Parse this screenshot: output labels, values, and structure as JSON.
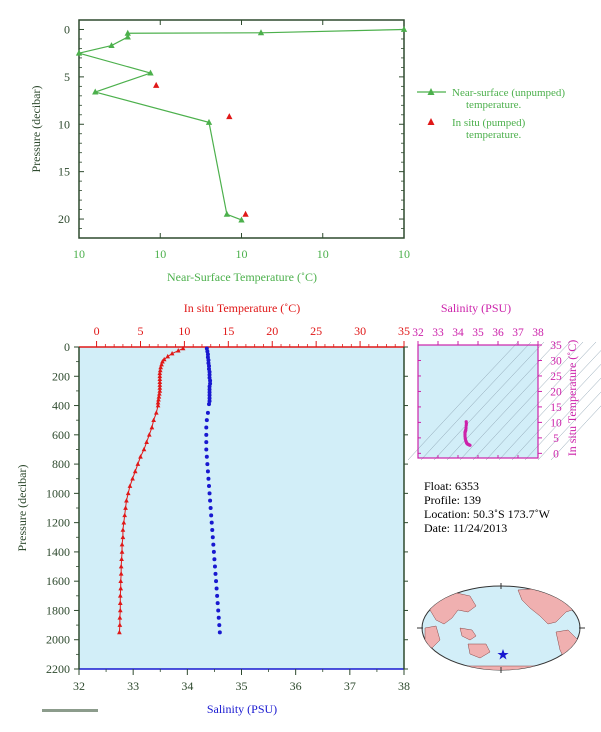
{
  "colors": {
    "axis": "#2e4a2e",
    "green": "#4cb04c",
    "red": "#e01818",
    "blue": "#1818d0",
    "magenta": "#cc22aa",
    "panel_bg": "#d2eef8",
    "land": "#f0b0b0",
    "ocean": "#d2eef8"
  },
  "chart_data": [
    {
      "type": "line",
      "id": "near-surface",
      "xlabel": "Near-Surface Temperature (˚C)",
      "ylabel": "Pressure (decibar)",
      "xlim": [
        9.9,
        10.1
      ],
      "ylim": [
        22,
        -1
      ],
      "x_ticks": [
        9.9,
        9.95,
        10.0,
        10.05,
        10.1
      ],
      "x_tick_labels": [
        "10",
        "10",
        "10",
        "10",
        "10"
      ],
      "y_ticks": [
        0,
        5,
        10,
        15,
        20
      ],
      "y_tick_labels": [
        "0",
        "5",
        "10",
        "15",
        "20"
      ],
      "legend": {
        "placement": "right",
        "items": [
          {
            "label": "Near-surface (unpumped)",
            "label2": "temperature.",
            "marker": "triangle-line"
          },
          {
            "label": "In situ (pumped)",
            "label2": "temperature.",
            "marker": "triangle"
          }
        ]
      },
      "series": [
        {
          "name": "Near-surface (unpumped) temperature.",
          "marker": "triangle-line",
          "points": [
            [
              10.1,
              0.0
            ],
            [
              10.012,
              0.35
            ],
            [
              9.93,
              0.4
            ],
            [
              9.93,
              0.8
            ],
            [
              9.92,
              1.7
            ],
            [
              9.9,
              2.5
            ],
            [
              9.944,
              4.6
            ],
            [
              9.91,
              6.6
            ],
            [
              9.98,
              9.8
            ],
            [
              9.991,
              19.5
            ],
            [
              10.0,
              20.1
            ]
          ]
        },
        {
          "name": "In situ (pumped) temperature.",
          "marker": "triangle",
          "points": [
            [
              9.9475,
              5.9
            ],
            [
              9.9925,
              9.2
            ],
            [
              10.0025,
              19.5
            ]
          ]
        }
      ]
    },
    {
      "type": "scatter",
      "id": "profile",
      "ylabel": "Pressure (decibar)",
      "ylim": [
        2200,
        0
      ],
      "y_ticks": [
        0,
        200,
        400,
        600,
        800,
        1000,
        1200,
        1400,
        1600,
        1800,
        2000,
        2200
      ],
      "top_axis": {
        "label": "In situ Temperature (˚C)",
        "range": [
          -2,
          35
        ],
        "ticks": [
          0,
          5,
          10,
          15,
          20,
          25,
          30,
          35
        ]
      },
      "bottom_axis": {
        "label": "Salinity (PSU)",
        "range": [
          32,
          38
        ],
        "ticks": [
          32,
          33,
          34,
          35,
          36,
          37,
          38
        ]
      },
      "series": [
        {
          "name": "In situ Temperature (˚C)",
          "axis": "top",
          "marker": "triangle",
          "points": [
            [
              9.85,
              10
            ],
            [
              9.3,
              25
            ],
            [
              8.6,
              45
            ],
            [
              8.1,
              65
            ],
            [
              7.7,
              85
            ],
            [
              7.5,
              100
            ],
            [
              7.4,
              120
            ],
            [
              7.3,
              140
            ],
            [
              7.25,
              160
            ],
            [
              7.2,
              180
            ],
            [
              7.2,
              200
            ],
            [
              7.2,
              220
            ],
            [
              7.2,
              240
            ],
            [
              7.2,
              260
            ],
            [
              7.2,
              280
            ],
            [
              7.2,
              300
            ],
            [
              7.15,
              320
            ],
            [
              7.1,
              340
            ],
            [
              7.05,
              360
            ],
            [
              7.0,
              380
            ],
            [
              7.0,
              400
            ],
            [
              6.8,
              450
            ],
            [
              6.5,
              500
            ],
            [
              6.3,
              550
            ],
            [
              6.0,
              600
            ],
            [
              5.7,
              650
            ],
            [
              5.4,
              700
            ],
            [
              5.0,
              750
            ],
            [
              4.7,
              800
            ],
            [
              4.4,
              850
            ],
            [
              4.1,
              900
            ],
            [
              3.8,
              950
            ],
            [
              3.6,
              1000
            ],
            [
              3.4,
              1050
            ],
            [
              3.3,
              1100
            ],
            [
              3.2,
              1150
            ],
            [
              3.1,
              1200
            ],
            [
              3.0,
              1250
            ],
            [
              3.0,
              1300
            ],
            [
              2.9,
              1350
            ],
            [
              2.9,
              1400
            ],
            [
              2.85,
              1450
            ],
            [
              2.8,
              1500
            ],
            [
              2.8,
              1550
            ],
            [
              2.75,
              1600
            ],
            [
              2.75,
              1650
            ],
            [
              2.7,
              1700
            ],
            [
              2.7,
              1750
            ],
            [
              2.7,
              1800
            ],
            [
              2.65,
              1850
            ],
            [
              2.65,
              1900
            ],
            [
              2.6,
              1950
            ]
          ]
        },
        {
          "name": "Salinity (PSU)",
          "axis": "bottom",
          "marker": "dot",
          "points": [
            [
              34.36,
              10
            ],
            [
              34.37,
              30
            ],
            [
              34.38,
              50
            ],
            [
              34.38,
              70
            ],
            [
              34.39,
              90
            ],
            [
              34.39,
              110
            ],
            [
              34.4,
              130
            ],
            [
              34.4,
              150
            ],
            [
              34.41,
              170
            ],
            [
              34.41,
              190
            ],
            [
              34.41,
              210
            ],
            [
              34.42,
              230
            ],
            [
              34.42,
              250
            ],
            [
              34.41,
              270
            ],
            [
              34.41,
              290
            ],
            [
              34.41,
              310
            ],
            [
              34.41,
              330
            ],
            [
              34.41,
              350
            ],
            [
              34.41,
              370
            ],
            [
              34.4,
              390
            ],
            [
              34.38,
              450
            ],
            [
              34.36,
              500
            ],
            [
              34.35,
              550
            ],
            [
              34.35,
              600
            ],
            [
              34.35,
              650
            ],
            [
              34.35,
              700
            ],
            [
              34.36,
              750
            ],
            [
              34.37,
              800
            ],
            [
              34.38,
              850
            ],
            [
              34.39,
              900
            ],
            [
              34.4,
              950
            ],
            [
              34.41,
              1000
            ],
            [
              34.42,
              1050
            ],
            [
              34.43,
              1100
            ],
            [
              34.44,
              1150
            ],
            [
              34.45,
              1200
            ],
            [
              34.46,
              1250
            ],
            [
              34.47,
              1300
            ],
            [
              34.48,
              1350
            ],
            [
              34.49,
              1400
            ],
            [
              34.5,
              1450
            ],
            [
              34.51,
              1500
            ],
            [
              34.52,
              1550
            ],
            [
              34.53,
              1600
            ],
            [
              34.54,
              1650
            ],
            [
              34.55,
              1700
            ],
            [
              34.56,
              1750
            ],
            [
              34.57,
              1800
            ],
            [
              34.58,
              1850
            ],
            [
              34.59,
              1900
            ],
            [
              34.6,
              1950
            ]
          ]
        }
      ]
    },
    {
      "type": "scatter",
      "id": "ts-diagram",
      "xlabel": "Salinity (PSU)",
      "ylabel": "In situ Temperature (˚C)",
      "xlim": [
        32,
        38
      ],
      "ylim": [
        -1.5,
        35
      ],
      "x_ticks": [
        32,
        33,
        34,
        35,
        36,
        37,
        38
      ],
      "y_ticks": [
        0,
        5,
        10,
        15,
        20,
        25,
        30,
        35
      ],
      "points": [
        [
          34.41,
          10.2
        ],
        [
          34.42,
          9.6
        ],
        [
          34.41,
          9.0
        ],
        [
          34.4,
          8.2
        ],
        [
          34.39,
          7.6
        ],
        [
          34.38,
          7.3
        ],
        [
          34.37,
          7.2
        ],
        [
          34.36,
          7.0
        ],
        [
          34.35,
          6.7
        ],
        [
          34.35,
          6.2
        ],
        [
          34.35,
          5.6
        ],
        [
          34.36,
          5.0
        ],
        [
          34.37,
          4.6
        ],
        [
          34.39,
          4.1
        ],
        [
          34.41,
          3.7
        ],
        [
          34.43,
          3.4
        ],
        [
          34.45,
          3.2
        ],
        [
          34.48,
          3.0
        ],
        [
          34.51,
          2.9
        ],
        [
          34.54,
          2.8
        ],
        [
          34.57,
          2.7
        ],
        [
          34.6,
          2.6
        ]
      ]
    }
  ],
  "info": {
    "float": "Float:  6353",
    "profile": "Profile:  139",
    "location": "Location:  50.3˚S  173.7˚W",
    "date": "Date:  11/24/2013"
  },
  "map": {
    "icon": "world-map-icon",
    "marker": "star"
  }
}
